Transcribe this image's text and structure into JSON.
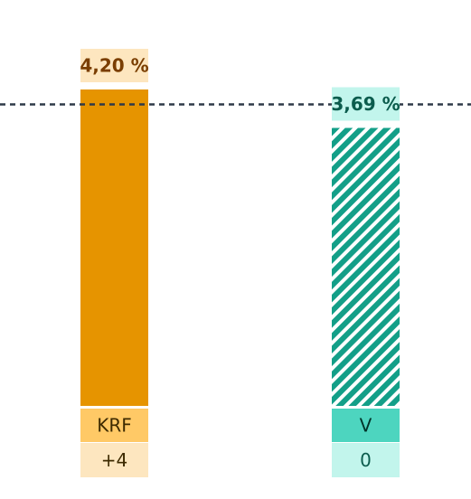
{
  "chart_data": {
    "type": "bar",
    "title": "",
    "xlabel": "",
    "ylabel": "",
    "ylim": [
      0,
      4.2
    ],
    "threshold": {
      "value": 4.0
    },
    "bars": [
      {
        "party": "KRF",
        "value": 4.2,
        "value_label": "4,20 %",
        "change_label": "+4",
        "pattern": "solid",
        "color": "#e69400",
        "party_bg": "#ffc966",
        "party_text": "#3d2a00",
        "change_bg": "#fde6bf",
        "change_text": "#3d2a00",
        "value_bg": "#fde6bf",
        "value_text": "#7a3e00"
      },
      {
        "party": "V",
        "value": 3.69,
        "value_label": "3,69 %",
        "change_label": "0",
        "pattern": "hatched",
        "color": "#139f88",
        "party_bg": "#4dd5bf",
        "party_text": "#003328",
        "change_bg": "#c2f5ec",
        "change_text": "#0b5c4d",
        "value_bg": "#c2f5ec",
        "value_text": "#0b5c4d"
      }
    ]
  }
}
